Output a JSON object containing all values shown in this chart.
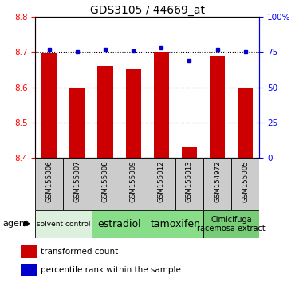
{
  "title": "GDS3105 / 44669_at",
  "samples": [
    "GSM155006",
    "GSM155007",
    "GSM155008",
    "GSM155009",
    "GSM155012",
    "GSM155013",
    "GSM154972",
    "GSM155005"
  ],
  "bar_values": [
    8.698,
    8.598,
    8.66,
    8.651,
    8.702,
    8.43,
    8.69,
    8.6
  ],
  "dot_values": [
    77,
    75,
    77,
    76,
    78,
    69,
    77,
    75
  ],
  "ylim_left": [
    8.4,
    8.8
  ],
  "ylim_right": [
    0,
    100
  ],
  "yticks_left": [
    8.4,
    8.5,
    8.6,
    8.7,
    8.8
  ],
  "yticks_right": [
    0,
    25,
    50,
    75,
    100
  ],
  "ytick_labels_right": [
    "0",
    "25",
    "50",
    "75",
    "100%"
  ],
  "bar_color": "#cc0000",
  "dot_color": "#0000cc",
  "bar_bottom": 8.4,
  "groups": [
    {
      "label": "solvent control",
      "indices": [
        0,
        1
      ],
      "color": "#ddf0dd",
      "fontsize": 6.5
    },
    {
      "label": "estradiol",
      "indices": [
        2,
        3
      ],
      "color": "#88dd88",
      "fontsize": 9
    },
    {
      "label": "tamoxifen",
      "indices": [
        4,
        5
      ],
      "color": "#88dd88",
      "fontsize": 9
    },
    {
      "label": "Cimicifuga\nracemosa extract",
      "indices": [
        6,
        7
      ],
      "color": "#77cc77",
      "fontsize": 7
    }
  ],
  "sample_box_color": "#cccccc",
  "legend_items": [
    {
      "color": "#cc0000",
      "label": "transformed count"
    },
    {
      "color": "#0000cc",
      "label": "percentile rank within the sample"
    }
  ],
  "plot_bg_color": "#ffffff"
}
